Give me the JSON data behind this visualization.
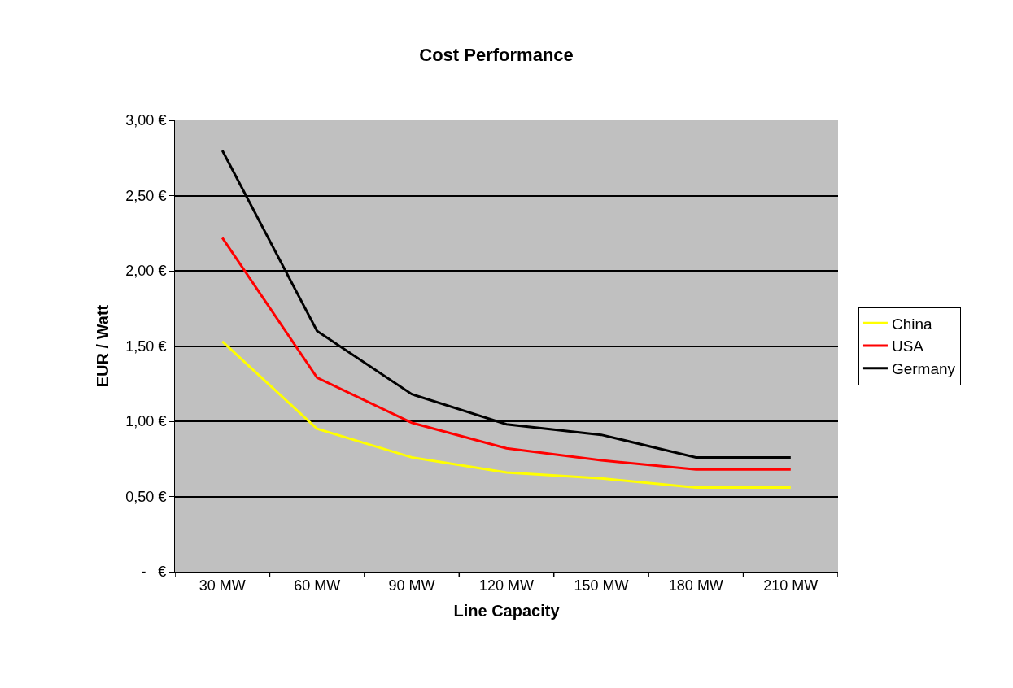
{
  "chart_data": {
    "type": "line",
    "title": "Cost Performance",
    "xlabel": "Line Capacity",
    "ylabel": "EUR / Watt",
    "categories": [
      "30 MW",
      "60 MW",
      "90 MW",
      "120 MW",
      "150 MW",
      "180 MW",
      "210 MW"
    ],
    "series": [
      {
        "name": "China",
        "color": "#ffff00",
        "values": [
          1.53,
          0.95,
          0.76,
          0.66,
          0.62,
          0.56,
          0.56
        ]
      },
      {
        "name": "USA",
        "color": "#ff0000",
        "values": [
          2.22,
          1.29,
          0.99,
          0.82,
          0.74,
          0.68,
          0.68
        ]
      },
      {
        "name": "Germany",
        "color": "#000000",
        "values": [
          2.8,
          1.6,
          1.18,
          0.98,
          0.91,
          0.76,
          0.76
        ]
      }
    ],
    "ylim": [
      0,
      3
    ],
    "yticks": [
      {
        "value": 0,
        "label": "-   €"
      },
      {
        "value": 0.5,
        "label": "0,50 €"
      },
      {
        "value": 1,
        "label": "1,00 €"
      },
      {
        "value": 1.5,
        "label": "1,50 €"
      },
      {
        "value": 2,
        "label": "2,00 €"
      },
      {
        "value": 2.5,
        "label": "2,50 €"
      },
      {
        "value": 3,
        "label": "3,00 €"
      }
    ],
    "grid": "y",
    "legend": "right",
    "marker": "none",
    "line_style": "solid"
  }
}
